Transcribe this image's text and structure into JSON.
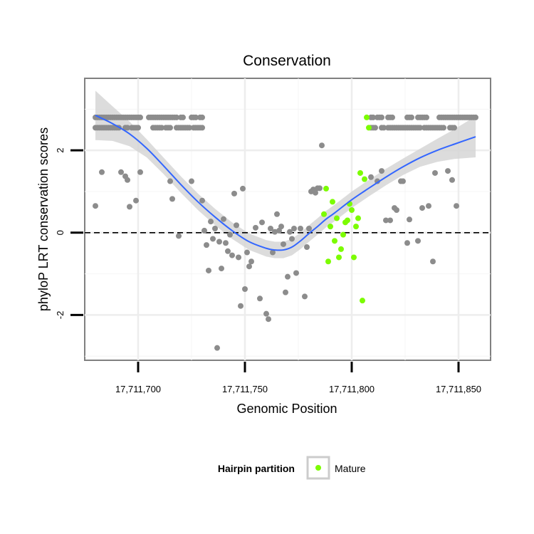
{
  "chart_data": {
    "type": "scatter",
    "title": "Conservation",
    "xlabel": "Genomic Position",
    "ylabel": "phyloP LRT conservation scores",
    "xlim": [
      17711675,
      17711865
    ],
    "ylim": [
      -3.1,
      3.75
    ],
    "x_ticks": [
      17711700,
      17711750,
      17711800,
      17711850
    ],
    "x_tick_labels": [
      "17,711,700",
      "17,711,750",
      "17,711,800",
      "17,711,850"
    ],
    "y_ticks": [
      -2,
      0,
      2
    ],
    "y_tick_labels": [
      "-2",
      "0",
      "2"
    ],
    "reference_line": {
      "y": 0,
      "style": "dashed"
    },
    "grid": true,
    "legend": {
      "title": "Hairpin partition",
      "position": "bottom",
      "entries": [
        {
          "label": "Mature",
          "color": "#7CFC00"
        }
      ]
    },
    "colors": {
      "other": "#8c8c8c",
      "mature": "#7CFC00",
      "smooth": "#3366FF",
      "ribbon": "#d3d3d3"
    },
    "series": [
      {
        "name": "Other",
        "points": [
          [
            17711680,
            2.8
          ],
          [
            17711681,
            2.8
          ],
          [
            17711682,
            2.8
          ],
          [
            17711683,
            2.8
          ],
          [
            17711684,
            2.8
          ],
          [
            17711685,
            2.8
          ],
          [
            17711686,
            2.8
          ],
          [
            17711687,
            2.8
          ],
          [
            17711688,
            2.8
          ],
          [
            17711689,
            2.8
          ],
          [
            17711690,
            2.8
          ],
          [
            17711691,
            2.8
          ],
          [
            17711692,
            2.8
          ],
          [
            17711693,
            2.8
          ],
          [
            17711694,
            2.8
          ],
          [
            17711695,
            2.8
          ],
          [
            17711696,
            2.8
          ],
          [
            17711697,
            2.8
          ],
          [
            17711698,
            2.8
          ],
          [
            17711699,
            2.8
          ],
          [
            17711700,
            2.8
          ],
          [
            17711701,
            2.8
          ],
          [
            17711705,
            2.8
          ],
          [
            17711706,
            2.8
          ],
          [
            17711707,
            2.8
          ],
          [
            17711708,
            2.8
          ],
          [
            17711709,
            2.8
          ],
          [
            17711710,
            2.8
          ],
          [
            17711711,
            2.8
          ],
          [
            17711712,
            2.8
          ],
          [
            17711713,
            2.8
          ],
          [
            17711714,
            2.8
          ],
          [
            17711715,
            2.8
          ],
          [
            17711716,
            2.8
          ],
          [
            17711717,
            2.8
          ],
          [
            17711718,
            2.8
          ],
          [
            17711720,
            2.8
          ],
          [
            17711721,
            2.8
          ],
          [
            17711725,
            2.8
          ],
          [
            17711726,
            2.8
          ],
          [
            17711727,
            2.8
          ],
          [
            17711729,
            2.8
          ],
          [
            17711730,
            2.8
          ],
          [
            17711680,
            2.55
          ],
          [
            17711681,
            2.55
          ],
          [
            17711682,
            2.55
          ],
          [
            17711683,
            2.55
          ],
          [
            17711684,
            2.55
          ],
          [
            17711685,
            2.55
          ],
          [
            17711686,
            2.55
          ],
          [
            17711687,
            2.55
          ],
          [
            17711688,
            2.55
          ],
          [
            17711689,
            2.55
          ],
          [
            17711690,
            2.55
          ],
          [
            17711691,
            2.55
          ],
          [
            17711694,
            2.55
          ],
          [
            17711695,
            2.55
          ],
          [
            17711697,
            2.55
          ],
          [
            17711698,
            2.55
          ],
          [
            17711699,
            2.55
          ],
          [
            17711700,
            2.55
          ],
          [
            17711707,
            2.55
          ],
          [
            17711708,
            2.55
          ],
          [
            17711709,
            2.55
          ],
          [
            17711710,
            2.55
          ],
          [
            17711711,
            2.55
          ],
          [
            17711713,
            2.55
          ],
          [
            17711714,
            2.55
          ],
          [
            17711715,
            2.55
          ],
          [
            17711718,
            2.55
          ],
          [
            17711719,
            2.55
          ],
          [
            17711720,
            2.55
          ],
          [
            17711721,
            2.55
          ],
          [
            17711722,
            2.55
          ],
          [
            17711723,
            2.55
          ],
          [
            17711724,
            2.55
          ],
          [
            17711726,
            2.55
          ],
          [
            17711727,
            2.55
          ],
          [
            17711728,
            2.55
          ],
          [
            17711729,
            2.55
          ],
          [
            17711730,
            2.55
          ],
          [
            17711809,
            2.8
          ],
          [
            17711810,
            2.8
          ],
          [
            17711812,
            2.8
          ],
          [
            17711813,
            2.8
          ],
          [
            17711814,
            2.8
          ],
          [
            17711817,
            2.8
          ],
          [
            17711818,
            2.8
          ],
          [
            17711819,
            2.8
          ],
          [
            17711826,
            2.8
          ],
          [
            17711827,
            2.8
          ],
          [
            17711828,
            2.8
          ],
          [
            17711831,
            2.8
          ],
          [
            17711832,
            2.8
          ],
          [
            17711833,
            2.8
          ],
          [
            17711834,
            2.8
          ],
          [
            17711835,
            2.8
          ],
          [
            17711841,
            2.8
          ],
          [
            17711842,
            2.8
          ],
          [
            17711843,
            2.8
          ],
          [
            17711844,
            2.8
          ],
          [
            17711845,
            2.8
          ],
          [
            17711846,
            2.8
          ],
          [
            17711847,
            2.8
          ],
          [
            17711848,
            2.8
          ],
          [
            17711849,
            2.8
          ],
          [
            17711850,
            2.8
          ],
          [
            17711851,
            2.8
          ],
          [
            17711852,
            2.8
          ],
          [
            17711853,
            2.8
          ],
          [
            17711854,
            2.8
          ],
          [
            17711855,
            2.8
          ],
          [
            17711856,
            2.8
          ],
          [
            17711857,
            2.8
          ],
          [
            17711858,
            2.8
          ],
          [
            17711809,
            2.55
          ],
          [
            17711810,
            2.55
          ],
          [
            17711811,
            2.55
          ],
          [
            17711814,
            2.55
          ],
          [
            17711815,
            2.55
          ],
          [
            17711817,
            2.55
          ],
          [
            17711818,
            2.55
          ],
          [
            17711819,
            2.55
          ],
          [
            17711820,
            2.55
          ],
          [
            17711821,
            2.55
          ],
          [
            17711822,
            2.55
          ],
          [
            17711823,
            2.55
          ],
          [
            17711824,
            2.55
          ],
          [
            17711825,
            2.55
          ],
          [
            17711826,
            2.55
          ],
          [
            17711827,
            2.55
          ],
          [
            17711828,
            2.55
          ],
          [
            17711829,
            2.55
          ],
          [
            17711830,
            2.55
          ],
          [
            17711831,
            2.55
          ],
          [
            17711832,
            2.55
          ],
          [
            17711834,
            2.55
          ],
          [
            17711835,
            2.55
          ],
          [
            17711836,
            2.55
          ],
          [
            17711837,
            2.55
          ],
          [
            17711838,
            2.55
          ],
          [
            17711839,
            2.55
          ],
          [
            17711840,
            2.55
          ],
          [
            17711841,
            2.55
          ],
          [
            17711842,
            2.55
          ],
          [
            17711843,
            2.55
          ],
          [
            17711846,
            2.55
          ],
          [
            17711847,
            2.55
          ],
          [
            17711848,
            2.55
          ],
          [
            17711680,
            0.65
          ],
          [
            17711683,
            1.47
          ],
          [
            17711692,
            1.47
          ],
          [
            17711694,
            1.37
          ],
          [
            17711695,
            1.28
          ],
          [
            17711696,
            0.63
          ],
          [
            17711699,
            0.78
          ],
          [
            17711701,
            1.47
          ],
          [
            17711715,
            1.25
          ],
          [
            17711716,
            0.82
          ],
          [
            17711719,
            -0.08
          ],
          [
            17711725,
            1.25
          ],
          [
            17711730,
            0.78
          ],
          [
            17711731,
            0.05
          ],
          [
            17711732,
            -0.3
          ],
          [
            17711733,
            -0.92
          ],
          [
            17711734,
            0.27
          ],
          [
            17711735,
            -0.15
          ],
          [
            17711736,
            0.1
          ],
          [
            17711737,
            -2.8
          ],
          [
            17711738,
            -0.22
          ],
          [
            17711739,
            -0.87
          ],
          [
            17711740,
            0.33
          ],
          [
            17711741,
            -0.25
          ],
          [
            17711742,
            -0.45
          ],
          [
            17711743,
            -0.05
          ],
          [
            17711744,
            -0.55
          ],
          [
            17711745,
            0.95
          ],
          [
            17711746,
            0.18
          ],
          [
            17711747,
            -0.6
          ],
          [
            17711748,
            -1.78
          ],
          [
            17711749,
            1.07
          ],
          [
            17711750,
            -1.37
          ],
          [
            17711751,
            -0.48
          ],
          [
            17711752,
            -0.82
          ],
          [
            17711753,
            -0.7
          ],
          [
            17711755,
            0.12
          ],
          [
            17711757,
            -1.6
          ],
          [
            17711758,
            0.25
          ],
          [
            17711760,
            -1.97
          ],
          [
            17711761,
            -2.1
          ],
          [
            17711762,
            0.1
          ],
          [
            17711763,
            -0.48
          ],
          [
            17711764,
            0.02
          ],
          [
            17711765,
            0.45
          ],
          [
            17711766,
            0.05
          ],
          [
            17711767,
            0.15
          ],
          [
            17711768,
            -0.28
          ],
          [
            17711769,
            -1.45
          ],
          [
            17711770,
            -1.07
          ],
          [
            17711771,
            0.02
          ],
          [
            17711772,
            -0.15
          ],
          [
            17711773,
            0.1
          ],
          [
            17711774,
            -0.98
          ],
          [
            17711776,
            0.1
          ],
          [
            17711778,
            -1.55
          ],
          [
            17711779,
            -0.35
          ],
          [
            17711780,
            0.1
          ],
          [
            17711781,
            1.0
          ],
          [
            17711782,
            1.05
          ],
          [
            17711783,
            0.97
          ],
          [
            17711784,
            1.08
          ],
          [
            17711785,
            1.08
          ],
          [
            17711786,
            2.12
          ],
          [
            17711809,
            1.35
          ],
          [
            17711812,
            1.25
          ],
          [
            17711814,
            1.5
          ],
          [
            17711816,
            0.3
          ],
          [
            17711818,
            0.3
          ],
          [
            17711820,
            0.6
          ],
          [
            17711821,
            0.55
          ],
          [
            17711823,
            1.25
          ],
          [
            17711824,
            1.25
          ],
          [
            17711826,
            -0.25
          ],
          [
            17711827,
            0.32
          ],
          [
            17711831,
            -0.2
          ],
          [
            17711833,
            0.6
          ],
          [
            17711836,
            0.65
          ],
          [
            17711838,
            -0.7
          ],
          [
            17711839,
            1.45
          ],
          [
            17711845,
            1.5
          ],
          [
            17711847,
            1.28
          ],
          [
            17711849,
            0.65
          ]
        ]
      },
      {
        "name": "Mature",
        "points": [
          [
            17711787,
            0.45
          ],
          [
            17711788,
            1.07
          ],
          [
            17711789,
            -0.7
          ],
          [
            17711790,
            0.15
          ],
          [
            17711791,
            0.75
          ],
          [
            17711792,
            -0.2
          ],
          [
            17711793,
            0.35
          ],
          [
            17711794,
            -0.6
          ],
          [
            17711795,
            -0.4
          ],
          [
            17711796,
            -0.05
          ],
          [
            17711797,
            0.25
          ],
          [
            17711798,
            0.3
          ],
          [
            17711799,
            0.7
          ],
          [
            17711800,
            0.55
          ],
          [
            17711801,
            -0.6
          ],
          [
            17711802,
            0.15
          ],
          [
            17711803,
            0.35
          ],
          [
            17711804,
            1.45
          ],
          [
            17711805,
            -1.65
          ],
          [
            17711806,
            1.3
          ],
          [
            17711807,
            2.8
          ],
          [
            17711808,
            2.55
          ]
        ]
      }
    ],
    "smooth": {
      "method": "loess",
      "x": [
        17711680,
        17711688,
        17711696,
        17711704,
        17711712,
        17711720,
        17711728,
        17711736,
        17711744,
        17711752,
        17711760,
        17711764,
        17711768,
        17711772,
        17711776,
        17711780,
        17711784,
        17711788,
        17711792,
        17711800,
        17711808,
        17711816,
        17711824,
        17711832,
        17711840,
        17711848,
        17711858
      ],
      "y": [
        2.85,
        2.65,
        2.4,
        2.05,
        1.62,
        1.17,
        0.75,
        0.38,
        0.05,
        -0.22,
        -0.38,
        -0.42,
        -0.42,
        -0.35,
        -0.2,
        -0.02,
        0.15,
        0.33,
        0.48,
        0.8,
        1.08,
        1.35,
        1.6,
        1.82,
        2.0,
        2.15,
        2.33
      ],
      "se": [
        0.6,
        0.42,
        0.3,
        0.22,
        0.2,
        0.2,
        0.2,
        0.2,
        0.2,
        0.2,
        0.2,
        0.2,
        0.2,
        0.2,
        0.2,
        0.2,
        0.2,
        0.2,
        0.2,
        0.2,
        0.2,
        0.2,
        0.2,
        0.22,
        0.28,
        0.36,
        0.5
      ]
    }
  }
}
